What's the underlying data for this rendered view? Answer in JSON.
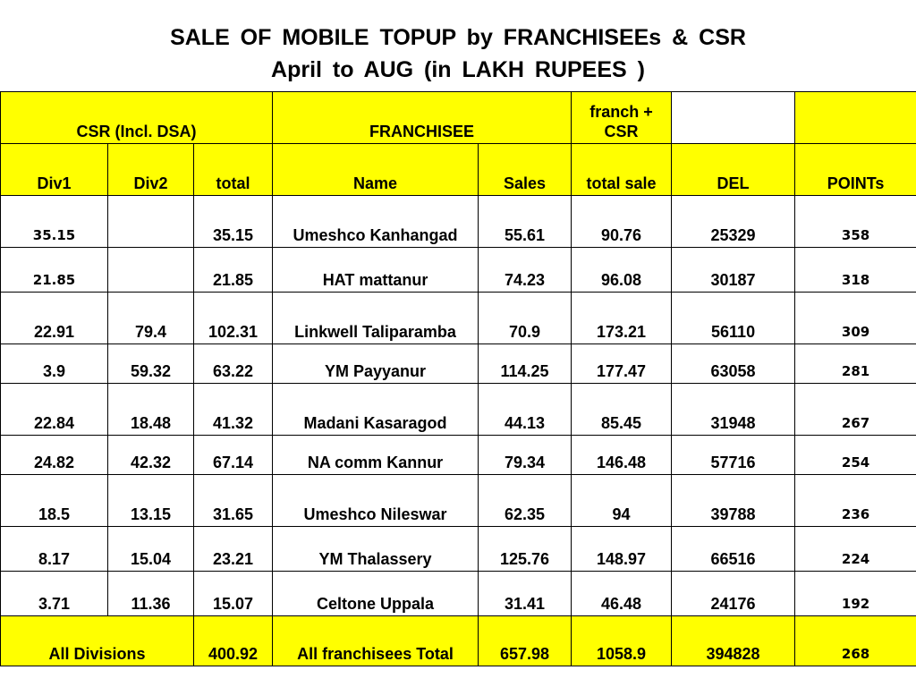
{
  "title_line1": "SALE   OF  MOBILE  TOPUP  by  FRANCHISEEs   &  CSR",
  "title_line2": "April  to  AUG  (in  LAKH   RUPEES )",
  "group_headers": {
    "csr": "CSR (Incl. DSA)",
    "franchisee": "FRANCHISEE",
    "franch_csr": "franch + CSR"
  },
  "columns": [
    "Div1",
    "Div2",
    "total",
    "Name",
    "Sales",
    "total sale",
    "DEL",
    "POINTs"
  ],
  "rows": [
    {
      "div1": "35.15",
      "div2": "",
      "total": "35.15",
      "name": "Umeshco Kanhangad",
      "sales": "55.61",
      "total_sale": "90.76",
      "del": "25329",
      "points": "358"
    },
    {
      "div1": "21.85",
      "div2": "",
      "total": "21.85",
      "name": "HAT mattanur",
      "sales": "74.23",
      "total_sale": "96.08",
      "del": "30187",
      "points": "318"
    },
    {
      "div1": "22.91",
      "div2": "79.4",
      "total": "102.31",
      "name": "Linkwell Taliparamba",
      "sales": "70.9",
      "total_sale": "173.21",
      "del": "56110",
      "points": "309"
    },
    {
      "div1": "3.9",
      "div2": "59.32",
      "total": "63.22",
      "name": "YM Payyanur",
      "sales": "114.25",
      "total_sale": "177.47",
      "del": "63058",
      "points": "281"
    },
    {
      "div1": "22.84",
      "div2": "18.48",
      "total": "41.32",
      "name": "Madani Kasaragod",
      "sales": "44.13",
      "total_sale": "85.45",
      "del": "31948",
      "points": "267"
    },
    {
      "div1": "24.82",
      "div2": "42.32",
      "total": "67.14",
      "name": "NA comm Kannur",
      "sales": "79.34",
      "total_sale": "146.48",
      "del": "57716",
      "points": "254"
    },
    {
      "div1": "18.5",
      "div2": "13.15",
      "total": "31.65",
      "name": "Umeshco Nileswar",
      "sales": "62.35",
      "total_sale": "94",
      "del": "39788",
      "points": "236"
    },
    {
      "div1": "8.17",
      "div2": "15.04",
      "total": "23.21",
      "name": "YM Thalassery",
      "sales": "125.76",
      "total_sale": "148.97",
      "del": "66516",
      "points": "224"
    },
    {
      "div1": "3.71",
      "div2": "11.36",
      "total": "15.07",
      "name": "Celtone Uppala",
      "sales": "31.41",
      "total_sale": "46.48",
      "del": "24176",
      "points": "192"
    }
  ],
  "totals": {
    "label": "All  Divisions",
    "csr_total": "400.92",
    "franch_label": "All franchisees Total",
    "sales": "657.98",
    "total_sale": "1058.9",
    "del": "394828",
    "points": "268"
  },
  "colors": {
    "header_bg": "#ffff00",
    "text": "#000000",
    "border": "#000000"
  }
}
